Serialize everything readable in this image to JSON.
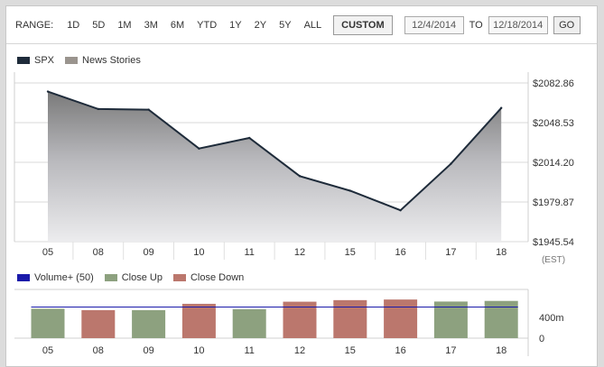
{
  "range_bar": {
    "label": "RANGE:",
    "buttons": [
      "1D",
      "5D",
      "1M",
      "3M",
      "6M",
      "YTD",
      "1Y",
      "2Y",
      "5Y",
      "ALL"
    ],
    "custom_label": "CUSTOM",
    "from_date": "12/4/2014",
    "to_label": "TO",
    "to_date": "12/18/2014",
    "go_label": "GO"
  },
  "legend_top": {
    "spx_label": "SPX",
    "news_label": "News Stories"
  },
  "legend_bottom": {
    "volume_label": "Volume+ (50)",
    "close_up_label": "Close Up",
    "close_down_label": "Close Down"
  },
  "colors": {
    "spx": "#1e2b3a",
    "news": "#9a948e",
    "volume_line": "#1a1aaa",
    "close_up": "#8da17f",
    "close_down": "#bb776d"
  },
  "chart_data": [
    {
      "type": "area",
      "categories": [
        "05",
        "08",
        "09",
        "10",
        "11",
        "12",
        "15",
        "16",
        "17",
        "18"
      ],
      "series": [
        {
          "name": "SPX",
          "values": [
            2075.4,
            2060.3,
            2059.8,
            2026.1,
            2035.3,
            2002.3,
            1989.6,
            1972.7,
            2012.9,
            2061.2
          ]
        }
      ],
      "y_ticks": [
        "$2082.86",
        "$2048.53",
        "$2014.20",
        "$1979.87",
        "$1945.54"
      ],
      "ylim": [
        1945.54,
        2082.86
      ],
      "timezone_label": "(EST)",
      "grid": true
    },
    {
      "type": "bar",
      "categories": [
        "05",
        "08",
        "09",
        "10",
        "11",
        "12",
        "15",
        "16",
        "17",
        "18"
      ],
      "series": [
        {
          "name": "Volume+ (50)",
          "values": [
            568,
            540,
            540,
            662,
            558,
            703,
            733,
            745,
            706,
            718
          ]
        }
      ],
      "bar_direction": [
        "up",
        "down",
        "up",
        "down",
        "up",
        "down",
        "down",
        "down",
        "up",
        "up"
      ],
      "volume_avg": 600,
      "y_ticks": [
        "400m",
        "0"
      ],
      "ylim": [
        0,
        800
      ]
    }
  ]
}
